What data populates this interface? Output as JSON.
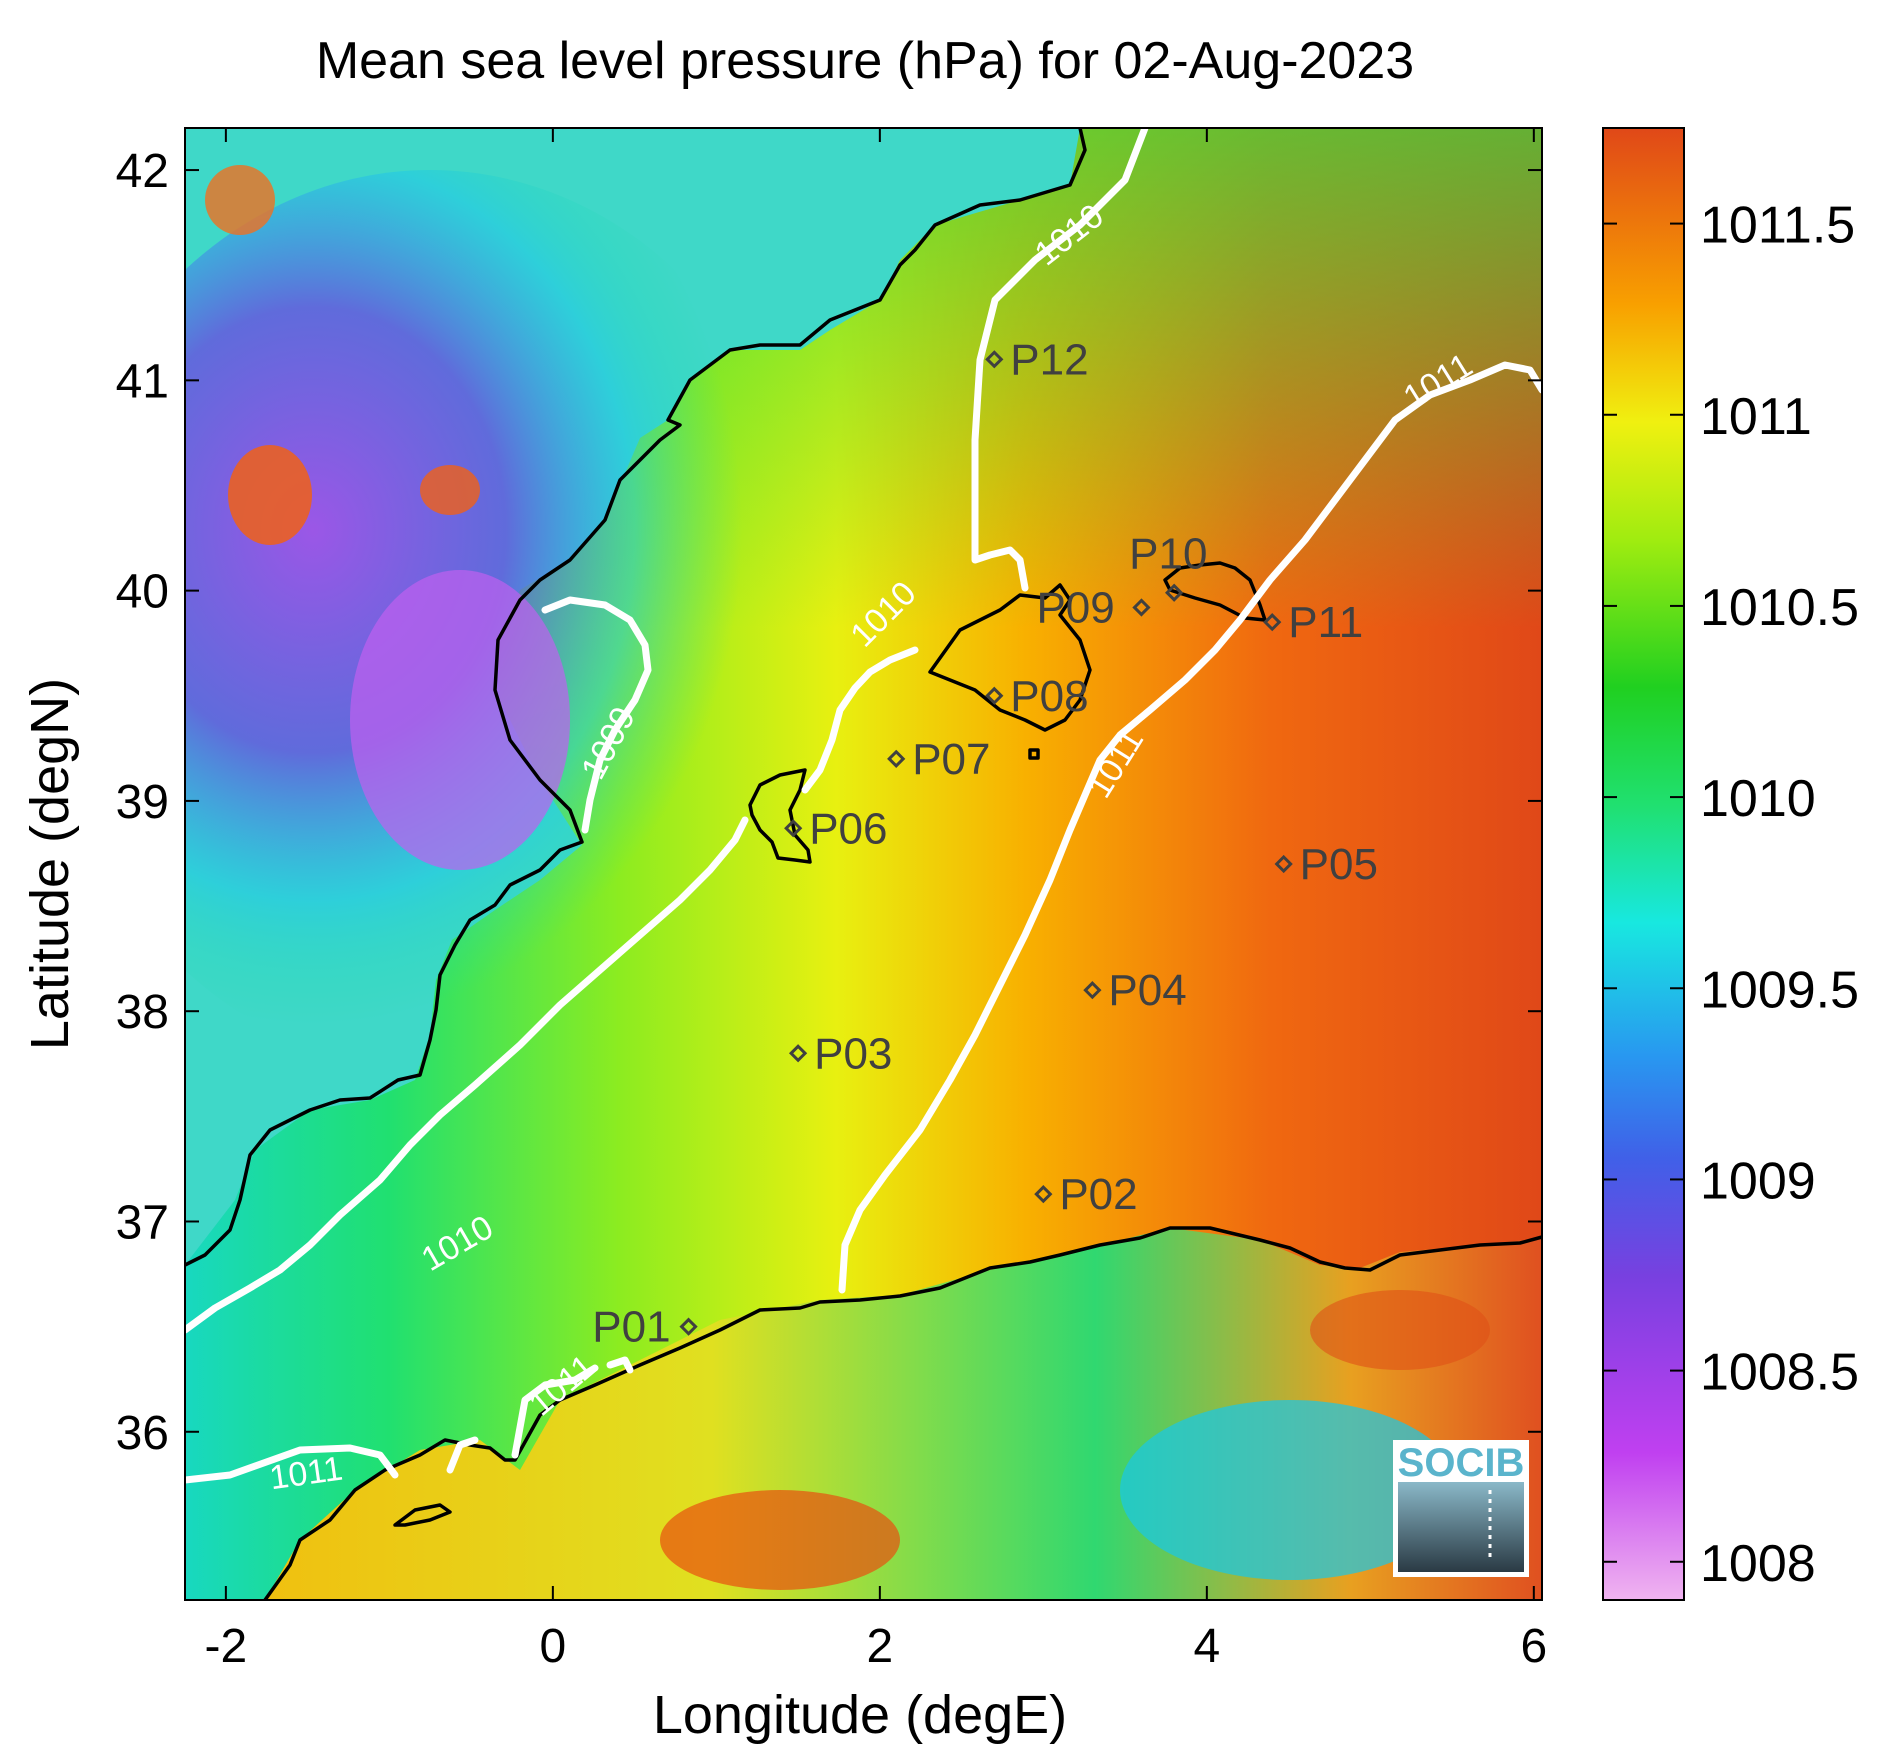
{
  "chart_data": {
    "type": "heatmap",
    "title": "Mean sea level pressure (hPa) for 02-Aug-2023",
    "xlabel": "Longitude (degE)",
    "ylabel": "Latitude (degN)",
    "xlim": [
      -2.25,
      6.05
    ],
    "ylim": [
      35.2,
      42.2
    ],
    "xticks": [
      -2,
      0,
      2,
      4,
      6
    ],
    "yticks": [
      36,
      37,
      38,
      39,
      40,
      41,
      42
    ],
    "colorbar": {
      "range": [
        1007.9,
        1011.75
      ],
      "ticks": [
        1008,
        1008.5,
        1009,
        1009.5,
        1010,
        1010.5,
        1011,
        1011.5
      ],
      "tick_labels": [
        "1008",
        "1008.5",
        "1009",
        "1009.5",
        "1010",
        "1010.5",
        "1011",
        "1011.5"
      ],
      "colors": [
        "#f0b4f0",
        "#c040f0",
        "#7840e0",
        "#2888f0",
        "#18e8e0",
        "#18d858",
        "#30dc20",
        "#f0f010",
        "#f8a800",
        "#e04818"
      ]
    },
    "stations": [
      {
        "name": "P01",
        "lon": 0.83,
        "lat": 36.5
      },
      {
        "name": "P02",
        "lon": 3.0,
        "lat": 37.13
      },
      {
        "name": "P03",
        "lon": 1.5,
        "lat": 37.8
      },
      {
        "name": "P04",
        "lon": 3.3,
        "lat": 38.1
      },
      {
        "name": "P05",
        "lon": 4.47,
        "lat": 38.7
      },
      {
        "name": "P06",
        "lon": 1.47,
        "lat": 38.87
      },
      {
        "name": "P07",
        "lon": 2.1,
        "lat": 39.2
      },
      {
        "name": "P08",
        "lon": 2.7,
        "lat": 39.5
      },
      {
        "name": "P09",
        "lon": 3.6,
        "lat": 39.92
      },
      {
        "name": "P10",
        "lon": 3.8,
        "lat": 39.99
      },
      {
        "name": "P11",
        "lon": 4.4,
        "lat": 39.85
      },
      {
        "name": "P12",
        "lon": 2.7,
        "lat": 41.1
      }
    ],
    "contour_labels": [
      {
        "text": "1010",
        "lon": 3.2,
        "lat": 41.65
      },
      {
        "text": "1011",
        "lon": 5.45,
        "lat": 40.95
      },
      {
        "text": "1009",
        "lon": 0.4,
        "lat": 39.25
      },
      {
        "text": "1010",
        "lon": 2.07,
        "lat": 39.85
      },
      {
        "text": "1011",
        "lon": 3.5,
        "lat": 39.15
      },
      {
        "text": "1010",
        "lon": -0.55,
        "lat": 36.85
      },
      {
        "text": "1011",
        "lon": 0.1,
        "lat": 36.18
      },
      {
        "text": "1011",
        "lon": -1.5,
        "lat": 35.75
      }
    ],
    "logo": "SOCIB"
  }
}
